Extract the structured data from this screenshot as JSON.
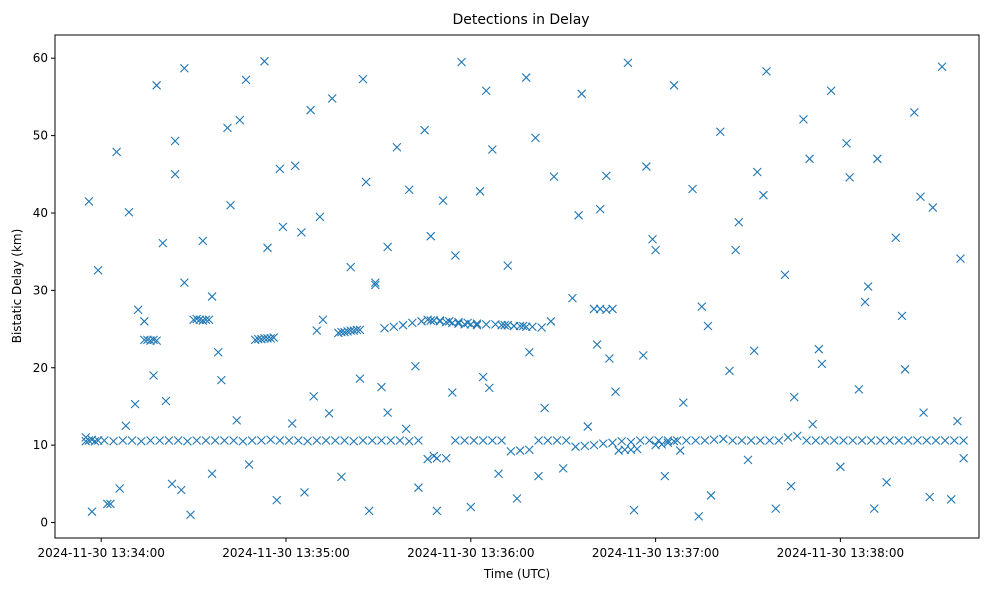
{
  "chart_data": {
    "type": "scatter",
    "title": "Detections in Delay",
    "xlabel": "Time (UTC)",
    "ylabel": "Bistatic Delay (km)",
    "xlim": [
      "2024-11-30 13:33:45",
      "2024-11-30 13:38:45"
    ],
    "ylim": [
      -2,
      63
    ],
    "xticks": [
      "2024-11-30 13:34:00",
      "2024-11-30 13:35:00",
      "2024-11-30 13:36:00",
      "2024-11-30 13:37:00",
      "2024-11-30 13:38:00"
    ],
    "yticks": [
      0,
      10,
      20,
      30,
      40,
      50,
      60
    ],
    "marker": "x",
    "color": "#1f77b4",
    "grid": false,
    "series": [
      {
        "x": [
          "2024-11-30 13:33:55",
          "2024-11-30 13:33:55",
          "2024-11-30 13:33:56",
          "2024-11-30 13:33:57",
          "2024-11-30 13:33:58",
          "2024-11-30 13:33:59",
          "2024-11-30 13:34:01",
          "2024-11-30 13:34:04",
          "2024-11-30 13:34:07",
          "2024-11-30 13:34:10",
          "2024-11-30 13:34:13",
          "2024-11-30 13:34:16",
          "2024-11-30 13:34:19",
          "2024-11-30 13:34:22",
          "2024-11-30 13:34:25",
          "2024-11-30 13:34:28",
          "2024-11-30 13:34:31",
          "2024-11-30 13:34:34",
          "2024-11-30 13:34:37",
          "2024-11-30 13:34:40",
          "2024-11-30 13:34:43",
          "2024-11-30 13:34:46",
          "2024-11-30 13:34:49",
          "2024-11-30 13:34:52",
          "2024-11-30 13:34:55",
          "2024-11-30 13:34:58",
          "2024-11-30 13:35:01",
          "2024-11-30 13:35:04",
          "2024-11-30 13:35:07",
          "2024-11-30 13:35:10",
          "2024-11-30 13:35:13",
          "2024-11-30 13:35:16",
          "2024-11-30 13:35:19",
          "2024-11-30 13:35:22",
          "2024-11-30 13:35:25",
          "2024-11-30 13:35:28",
          "2024-11-30 13:35:31",
          "2024-11-30 13:35:34",
          "2024-11-30 13:35:37",
          "2024-11-30 13:35:40",
          "2024-11-30 13:35:43",
          "2024-11-30 13:35:46",
          "2024-11-30 13:35:49",
          "2024-11-30 13:35:52",
          "2024-11-30 13:35:55",
          "2024-11-30 13:35:58",
          "2024-11-30 13:36:01",
          "2024-11-30 13:36:04",
          "2024-11-30 13:36:07",
          "2024-11-30 13:36:10",
          "2024-11-30 13:36:13",
          "2024-11-30 13:36:16",
          "2024-11-30 13:36:19",
          "2024-11-30 13:36:22",
          "2024-11-30 13:36:25",
          "2024-11-30 13:36:28",
          "2024-11-30 13:36:31",
          "2024-11-30 13:36:34",
          "2024-11-30 13:36:37",
          "2024-11-30 13:36:40",
          "2024-11-30 13:36:43",
          "2024-11-30 13:36:46",
          "2024-11-30 13:36:49",
          "2024-11-30 13:36:52",
          "2024-11-30 13:36:55",
          "2024-11-30 13:36:58",
          "2024-11-30 13:37:01",
          "2024-11-30 13:37:04",
          "2024-11-30 13:37:07",
          "2024-11-30 13:37:10",
          "2024-11-30 13:37:13",
          "2024-11-30 13:37:16",
          "2024-11-30 13:37:19",
          "2024-11-30 13:37:22",
          "2024-11-30 13:37:25",
          "2024-11-30 13:37:28",
          "2024-11-30 13:37:31",
          "2024-11-30 13:37:34",
          "2024-11-30 13:37:37",
          "2024-11-30 13:37:40",
          "2024-11-30 13:37:43",
          "2024-11-30 13:37:46",
          "2024-11-30 13:37:49",
          "2024-11-30 13:37:52",
          "2024-11-30 13:37:55",
          "2024-11-30 13:37:58",
          "2024-11-30 13:38:01",
          "2024-11-30 13:38:04",
          "2024-11-30 13:38:07",
          "2024-11-30 13:38:10",
          "2024-11-30 13:38:13",
          "2024-11-30 13:38:16",
          "2024-11-30 13:38:19",
          "2024-11-30 13:38:22",
          "2024-11-30 13:38:25",
          "2024-11-30 13:38:28",
          "2024-11-30 13:38:31",
          "2024-11-30 13:38:34",
          "2024-11-30 13:38:37",
          "2024-11-30 13:38:40",
          "2024-11-30 13:34:14",
          "2024-11-30 13:34:15",
          "2024-11-30 13:34:16",
          "2024-11-30 13:34:17",
          "2024-11-30 13:34:18",
          "2024-11-30 13:34:30",
          "2024-11-30 13:34:31",
          "2024-11-30 13:34:32",
          "2024-11-30 13:34:33",
          "2024-11-30 13:34:34",
          "2024-11-30 13:34:35",
          "2024-11-30 13:34:50",
          "2024-11-30 13:34:51",
          "2024-11-30 13:34:52",
          "2024-11-30 13:34:53",
          "2024-11-30 13:34:54",
          "2024-11-30 13:34:55",
          "2024-11-30 13:34:56",
          "2024-11-30 13:35:17",
          "2024-11-30 13:35:18",
          "2024-11-30 13:35:19",
          "2024-11-30 13:35:20",
          "2024-11-30 13:35:21",
          "2024-11-30 13:35:22",
          "2024-11-30 13:35:23",
          "2024-11-30 13:35:24",
          "2024-11-30 13:35:32",
          "2024-11-30 13:35:35",
          "2024-11-30 13:35:38",
          "2024-11-30 13:35:41",
          "2024-11-30 13:35:44",
          "2024-11-30 13:35:47",
          "2024-11-30 13:35:50",
          "2024-11-30 13:35:53",
          "2024-11-30 13:35:56",
          "2024-11-30 13:35:59",
          "2024-11-30 13:36:02",
          "2024-11-30 13:36:05",
          "2024-11-30 13:36:08",
          "2024-11-30 13:36:11",
          "2024-11-30 13:36:14",
          "2024-11-30 13:36:17",
          "2024-11-30 13:36:20",
          "2024-11-30 13:36:23",
          "2024-11-30 13:35:46",
          "2024-11-30 13:35:48",
          "2024-11-30 13:35:50",
          "2024-11-30 13:35:52",
          "2024-11-30 13:35:54",
          "2024-11-30 13:35:56",
          "2024-11-30 13:35:58",
          "2024-11-30 13:36:00",
          "2024-11-30 13:36:02",
          "2024-11-30 13:36:10",
          "2024-11-30 13:36:12",
          "2024-11-30 13:36:14",
          "2024-11-30 13:36:16",
          "2024-11-30 13:36:18",
          "2024-11-30 13:36:40",
          "2024-11-30 13:36:42",
          "2024-11-30 13:36:44",
          "2024-11-30 13:36:46",
          "2024-11-30 13:36:48",
          "2024-11-30 13:36:50",
          "2024-11-30 13:36:52",
          "2024-11-30 13:36:54",
          "2024-11-30 13:37:00",
          "2024-11-30 13:37:02",
          "2024-11-30 13:37:04",
          "2024-11-30 13:37:06",
          "2024-11-30 13:33:56",
          "2024-11-30 13:33:59",
          "2024-11-30 13:34:05",
          "2024-11-30 13:34:09",
          "2024-11-30 13:34:12",
          "2024-11-30 13:34:18",
          "2024-11-30 13:34:21",
          "2024-11-30 13:34:24",
          "2024-11-30 13:34:27",
          "2024-11-30 13:34:33",
          "2024-11-30 13:34:38",
          "2024-11-30 13:34:41",
          "2024-11-30 13:34:47",
          "2024-11-30 13:34:53",
          "2024-11-30 13:34:59",
          "2024-11-30 13:35:03",
          "2024-11-30 13:35:08",
          "2024-11-30 13:35:11",
          "2024-11-30 13:35:15",
          "2024-11-30 13:35:21",
          "2024-11-30 13:35:26",
          "2024-11-30 13:35:29",
          "2024-11-30 13:35:33",
          "2024-11-30 13:35:36",
          "2024-11-30 13:35:42",
          "2024-11-30 13:35:45",
          "2024-11-30 13:35:51",
          "2024-11-30 13:35:57",
          "2024-11-30 13:36:03",
          "2024-11-30 13:36:06",
          "2024-11-30 13:36:12",
          "2024-11-30 13:36:18",
          "2024-11-30 13:36:21",
          "2024-11-30 13:36:27",
          "2024-11-30 13:36:33",
          "2024-11-30 13:36:36",
          "2024-11-30 13:36:42",
          "2024-11-30 13:36:45",
          "2024-11-30 13:36:51",
          "2024-11-30 13:36:57",
          "2024-11-30 13:37:00",
          "2024-11-30 13:37:06",
          "2024-11-30 13:37:12",
          "2024-11-30 13:37:15",
          "2024-11-30 13:37:21",
          "2024-11-30 13:37:27",
          "2024-11-30 13:37:33",
          "2024-11-30 13:37:36",
          "2024-11-30 13:37:42",
          "2024-11-30 13:37:48",
          "2024-11-30 13:37:54",
          "2024-11-30 13:37:57",
          "2024-11-30 13:38:03",
          "2024-11-30 13:38:09",
          "2024-11-30 13:38:12",
          "2024-11-30 13:38:18",
          "2024-11-30 13:38:24",
          "2024-11-30 13:38:30",
          "2024-11-30 13:38:33",
          "2024-11-30 13:38:39",
          "2024-11-30 13:34:02",
          "2024-11-30 13:34:08",
          "2024-11-30 13:34:11",
          "2024-11-30 13:34:17",
          "2024-11-30 13:34:23",
          "2024-11-30 13:34:26",
          "2024-11-30 13:34:29",
          "2024-11-30 13:34:36",
          "2024-11-30 13:34:39",
          "2024-11-30 13:34:44",
          "2024-11-30 13:34:48",
          "2024-11-30 13:34:57",
          "2024-11-30 13:35:02",
          "2024-11-30 13:35:06",
          "2024-11-30 13:35:09",
          "2024-11-30 13:35:14",
          "2024-11-30 13:35:18",
          "2024-11-30 13:35:24",
          "2024-11-30 13:35:27",
          "2024-11-30 13:35:31",
          "2024-11-30 13:35:39",
          "2024-11-30 13:35:43",
          "2024-11-30 13:35:48",
          "2024-11-30 13:35:54",
          "2024-11-30 13:36:00",
          "2024-11-30 13:36:04",
          "2024-11-30 13:36:09",
          "2024-11-30 13:36:15",
          "2024-11-30 13:36:24",
          "2024-11-30 13:36:30",
          "2024-11-30 13:36:38",
          "2024-11-30 13:36:47",
          "2024-11-30 13:36:53",
          "2024-11-30 13:37:03",
          "2024-11-30 13:37:09",
          "2024-11-30 13:37:18",
          "2024-11-30 13:37:24",
          "2024-11-30 13:37:30",
          "2024-11-30 13:37:39",
          "2024-11-30 13:37:45",
          "2024-11-30 13:37:51",
          "2024-11-30 13:38:00",
          "2024-11-30 13:38:06",
          "2024-11-30 13:38:15",
          "2024-11-30 13:38:21",
          "2024-11-30 13:38:27",
          "2024-11-30 13:38:36",
          "2024-11-30 13:38:40",
          "2024-11-30 13:34:03",
          "2024-11-30 13:34:06",
          "2024-11-30 13:34:20",
          "2024-11-30 13:34:24",
          "2024-11-30 13:34:36",
          "2024-11-30 13:34:45",
          "2024-11-30 13:34:58",
          "2024-11-30 13:35:05",
          "2024-11-30 13:35:12",
          "2024-11-30 13:35:25",
          "2024-11-30 13:35:33",
          "2024-11-30 13:35:40",
          "2024-11-30 13:35:49",
          "2024-11-30 13:35:55",
          "2024-11-30 13:36:07",
          "2024-11-30 13:36:19",
          "2024-11-30 13:36:26",
          "2024-11-30 13:36:35",
          "2024-11-30 13:36:44",
          "2024-11-30 13:36:56",
          "2024-11-30 13:37:08",
          "2024-11-30 13:37:17",
          "2024-11-30 13:37:26",
          "2024-11-30 13:37:35",
          "2024-11-30 13:37:44",
          "2024-11-30 13:37:53",
          "2024-11-30 13:38:02",
          "2024-11-30 13:38:11",
          "2024-11-30 13:38:20",
          "2024-11-30 13:38:29",
          "2024-11-30 13:33:57",
          "2024-11-30 13:34:14",
          "2024-11-30 13:34:27",
          "2024-11-30 13:34:42",
          "2024-11-30 13:34:54",
          "2024-11-30 13:35:10",
          "2024-11-30 13:35:29",
          "2024-11-30 13:35:47",
          "2024-11-30 13:36:05",
          "2024-11-30 13:36:22",
          "2024-11-30 13:36:41",
          "2024-11-30 13:36:59",
          "2024-11-30 13:37:14",
          "2024-11-30 13:37:32",
          "2024-11-30 13:37:50",
          "2024-11-30 13:38:08",
          "2024-11-30 13:38:26",
          "2024-11-30 13:38:38"
        ],
        "y": [
          11.0,
          10.5,
          10.6,
          10.7,
          10.5,
          10.6,
          10.6,
          10.5,
          10.6,
          10.6,
          10.5,
          10.6,
          10.6,
          10.6,
          10.6,
          10.5,
          10.6,
          10.6,
          10.6,
          10.6,
          10.6,
          10.5,
          10.6,
          10.6,
          10.7,
          10.6,
          10.6,
          10.6,
          10.5,
          10.6,
          10.6,
          10.6,
          10.6,
          10.5,
          10.6,
          10.6,
          10.6,
          10.6,
          10.6,
          10.5,
          10.6,
          8.2,
          8.3,
          8.3,
          10.6,
          10.6,
          10.6,
          10.6,
          10.6,
          10.6,
          9.2,
          9.3,
          9.4,
          10.6,
          10.6,
          10.6,
          10.6,
          9.8,
          9.9,
          10.0,
          10.2,
          10.3,
          10.5,
          10.4,
          10.6,
          10.6,
          10.6,
          10.6,
          10.6,
          10.6,
          10.6,
          10.6,
          10.7,
          10.8,
          10.6,
          10.6,
          10.6,
          10.6,
          10.6,
          10.6,
          11.0,
          11.2,
          10.6,
          10.6,
          10.6,
          10.6,
          10.6,
          10.6,
          10.6,
          10.6,
          10.6,
          10.6,
          10.6,
          10.6,
          10.6,
          10.6,
          10.6,
          10.6,
          10.6,
          10.6,
          23.6,
          23.6,
          23.5,
          23.6,
          23.5,
          26.2,
          26.3,
          26.2,
          26.1,
          26.2,
          26.2,
          23.6,
          23.7,
          23.7,
          23.8,
          23.8,
          23.8,
          23.9,
          24.5,
          24.6,
          24.6,
          24.7,
          24.8,
          24.8,
          24.9,
          24.9,
          25.1,
          25.3,
          25.5,
          25.8,
          26.0,
          26.1,
          26.1,
          26.0,
          25.9,
          25.8,
          25.7,
          25.6,
          25.6,
          25.5,
          25.4,
          25.4,
          25.3,
          25.2,
          26.2,
          26.1,
          26.0,
          25.9,
          25.8,
          25.7,
          25.6,
          25.6,
          25.5,
          25.5,
          25.5,
          25.4,
          25.4,
          25.3,
          27.6,
          27.6,
          27.5,
          27.6,
          9.3,
          9.4,
          9.4,
          9.5,
          10.0,
          10.1,
          10.3,
          10.5,
          41.5,
          32.6,
          47.9,
          40.1,
          27.5,
          56.5,
          15.7,
          45.0,
          58.7,
          36.4,
          22.0,
          51.0,
          57.2,
          59.6,
          38.2,
          46.1,
          53.3,
          39.5,
          54.8,
          33.0,
          44.0,
          31.0,
          35.6,
          48.5,
          20.2,
          50.7,
          41.6,
          59.5,
          42.8,
          17.4,
          33.2,
          57.5,
          49.7,
          44.7,
          29.0,
          55.4,
          40.5,
          21.2,
          59.4,
          46.0,
          35.2,
          56.5,
          43.1,
          27.9,
          50.5,
          38.8,
          45.3,
          58.3,
          32.0,
          52.1,
          20.5,
          55.8,
          44.6,
          30.5,
          47.0,
          36.8,
          53.0,
          40.7,
          58.9,
          34.1,
          2.4,
          12.5,
          15.3,
          19.0,
          5.0,
          4.2,
          1.0,
          6.3,
          18.4,
          13.2,
          7.5,
          2.9,
          12.8,
          3.9,
          16.3,
          14.1,
          5.9,
          18.6,
          1.5,
          17.5,
          12.1,
          4.5,
          8.6,
          16.8,
          2.0,
          18.8,
          6.3,
          3.1,
          14.8,
          7.0,
          12.4,
          16.9,
          1.6,
          6.0,
          15.5,
          3.5,
          19.6,
          8.1,
          1.8,
          16.2,
          12.7,
          7.2,
          17.2,
          5.2,
          19.8,
          14.2,
          3.0,
          8.3,
          2.4,
          4.4,
          36.1,
          49.3,
          29.2,
          52.0,
          45.7,
          37.5,
          26.2,
          57.3,
          14.2,
          43.0,
          1.5,
          34.5,
          48.2,
          22.0,
          26.0,
          39.7,
          44.8,
          21.6,
          9.3,
          25.4,
          35.2,
          42.3,
          4.7,
          22.4,
          49.0,
          1.8,
          26.7,
          3.3,
          1.4,
          26.0,
          31.0,
          41.0,
          35.5,
          24.8,
          30.7,
          37.0,
          55.8,
          6.0,
          23.0,
          36.6,
          0.8,
          22.2,
          47.0,
          28.5,
          42.1,
          13.1
        ]
      }
    ]
  }
}
